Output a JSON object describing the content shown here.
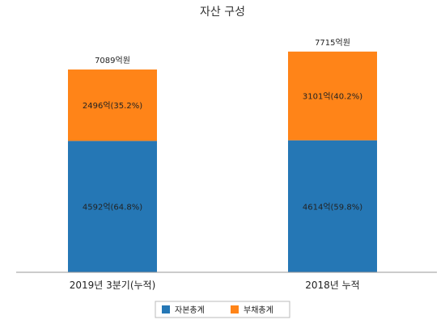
{
  "chart_data": {
    "type": "bar",
    "stacked": true,
    "title": "자산 구성",
    "categories": [
      "2019년 3분기(누적)",
      "2018년 누적"
    ],
    "series": [
      {
        "name": "자본총계",
        "color": "#2577b5",
        "values": [
          4592,
          4614
        ],
        "labels": [
          "4592억(64.8%)",
          "4614억(59.8%)"
        ]
      },
      {
        "name": "부채총계",
        "color": "#ff8418",
        "values": [
          2496,
          3101
        ],
        "labels": [
          "2496억(35.2%)",
          "3101억(40.2%)"
        ]
      }
    ],
    "totals": [
      "7089억원",
      "7715억원"
    ],
    "legend_position": "bottom",
    "grid": false
  }
}
